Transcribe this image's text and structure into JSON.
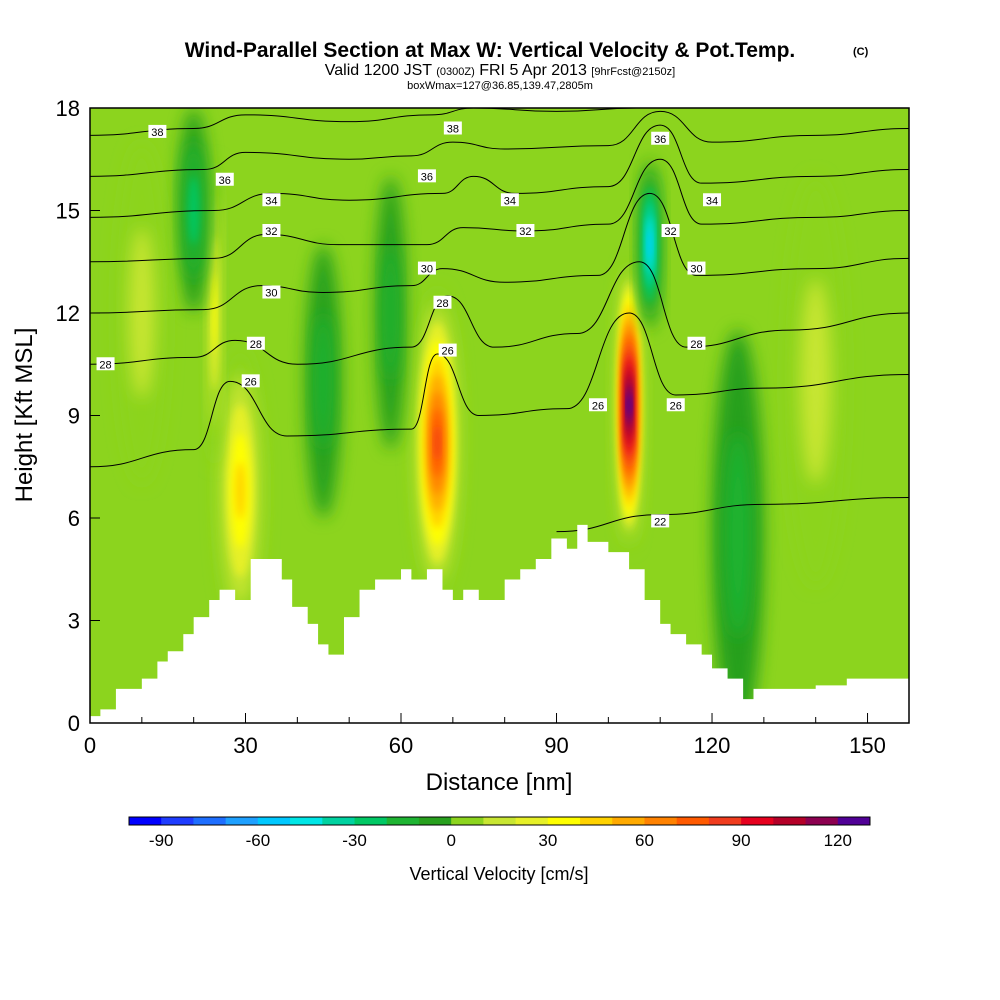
{
  "header": {
    "title_main": "Wind-Parallel Section at Max W: Vertical Velocity & Pot.Temp.",
    "title_mark": "(C)",
    "valid_a": "Valid 1200 JST",
    "valid_b": "(0300Z)",
    "valid_c": "FRI 5 Apr 2013",
    "valid_d": "[9hrFcst@2150z]",
    "box_info": "boxWmax=127@36.85,139.47,2805m"
  },
  "chart_data": {
    "type": "heatmap",
    "xlabel": "Distance [nm]",
    "ylabel": "Height [Kft MSL]",
    "xlim": [
      0,
      158
    ],
    "ylim": [
      0,
      18
    ],
    "x_ticks": [
      0,
      30,
      60,
      90,
      120,
      150
    ],
    "x_tick_labels": [
      "0",
      "30",
      "60",
      "90",
      "120",
      "150"
    ],
    "x_minor_ticks": [
      10,
      20,
      40,
      50,
      70,
      80,
      100,
      110,
      130,
      140
    ],
    "y_ticks": [
      0,
      3,
      6,
      9,
      12,
      15,
      18
    ],
    "y_tick_labels": [
      "0",
      "3",
      "6",
      "9",
      "12",
      "15",
      "18"
    ],
    "grid": false,
    "background_color": "#8cd41e",
    "colorbar": {
      "label": "Vertical Velocity [cm/s]",
      "placement": "bottom",
      "min": -100,
      "max": 130,
      "step": 10,
      "colors": [
        "#0000ff",
        "#1e3cff",
        "#1e6eff",
        "#1ea0ff",
        "#00c8ff",
        "#00e6e6",
        "#00d2a0",
        "#00c864",
        "#1eb432",
        "#28a01e",
        "#8cd41e",
        "#c8e632",
        "#e6f028",
        "#ffff00",
        "#ffd200",
        "#ffaa00",
        "#ff8200",
        "#ff5a00",
        "#f03c1e",
        "#e6001e",
        "#b40028",
        "#8c0050",
        "#500096"
      ],
      "tick_values": [
        -90,
        -60,
        -30,
        0,
        30,
        60,
        90,
        120
      ],
      "tick_labels": [
        "-90",
        "-60",
        "-30",
        "0",
        "30",
        "60",
        "90",
        "120"
      ]
    },
    "terrain": {
      "x": [
        0,
        2,
        2,
        5,
        5,
        10,
        10,
        13,
        13,
        15,
        15,
        18,
        18,
        20,
        20,
        23,
        23,
        25,
        25,
        28,
        28,
        31,
        31,
        37,
        37,
        39,
        39,
        42,
        42,
        44,
        44,
        46,
        46,
        49,
        49,
        52,
        52,
        55,
        55,
        60,
        60,
        62,
        62,
        65,
        65,
        68,
        68,
        70,
        70,
        72,
        72,
        75,
        75,
        80,
        80,
        83,
        83,
        86,
        86,
        89,
        89,
        92,
        92,
        94,
        94,
        96,
        96,
        100,
        100,
        104,
        104,
        107,
        107,
        110,
        110,
        112,
        112,
        115,
        115,
        118,
        118,
        120,
        120,
        123,
        123,
        126,
        126,
        128,
        128,
        132,
        132,
        140,
        140,
        146,
        146,
        158
      ],
      "y": [
        0.2,
        0.2,
        0.4,
        0.4,
        1,
        1,
        1.3,
        1.3,
        1.8,
        1.8,
        2.1,
        2.1,
        2.6,
        2.6,
        3.1,
        3.1,
        3.6,
        3.6,
        3.9,
        3.9,
        3.6,
        3.6,
        4.8,
        4.8,
        4.2,
        4.2,
        3.4,
        3.4,
        2.9,
        2.9,
        2.3,
        2.3,
        2,
        2,
        3.1,
        3.1,
        3.9,
        3.9,
        4.2,
        4.2,
        4.5,
        4.5,
        4.2,
        4.2,
        4.5,
        4.5,
        3.9,
        3.9,
        3.6,
        3.6,
        3.9,
        3.9,
        3.6,
        3.6,
        4.2,
        4.2,
        4.5,
        4.5,
        4.8,
        4.8,
        5.4,
        5.4,
        5.1,
        5.1,
        5.8,
        5.8,
        5.3,
        5.3,
        5,
        5,
        4.5,
        4.5,
        3.6,
        3.6,
        2.9,
        2.9,
        2.6,
        2.6,
        2.3,
        2.3,
        2,
        2,
        1.6,
        1.6,
        1.3,
        1.3,
        0.7,
        0.7,
        1,
        1,
        1,
        1,
        1.1,
        1.1,
        1.3,
        1.3
      ]
    },
    "vertical_velocity_features": [
      {
        "x": 29,
        "y": 6.8,
        "rx": 4.5,
        "ry": 4.2,
        "w": 40
      },
      {
        "x": 67,
        "y": 8.2,
        "rx": 4.5,
        "ry": 4.5,
        "w": 75
      },
      {
        "x": 104,
        "y": 9.3,
        "rx": 2.5,
        "ry": 4.2,
        "w": 127
      },
      {
        "x": 24,
        "y": 12,
        "rx": 1.5,
        "ry": 4.5,
        "w": 25
      },
      {
        "x": 20,
        "y": 15,
        "rx": 3.0,
        "ry": 3.0,
        "w": -15
      },
      {
        "x": 108,
        "y": 14,
        "rx": 2.0,
        "ry": 2.5,
        "w": -45
      },
      {
        "x": 45,
        "y": 10,
        "rx": 3.5,
        "ry": 4.0,
        "w": -12
      },
      {
        "x": 58,
        "y": 12,
        "rx": 3.0,
        "ry": 4.0,
        "w": -12
      },
      {
        "x": 125,
        "y": 5.5,
        "rx": 5.0,
        "ry": 6.0,
        "w": -8
      },
      {
        "x": 140,
        "y": 10,
        "rx": 6.0,
        "ry": 6.0,
        "w": 10
      },
      {
        "x": 10,
        "y": 12,
        "rx": 5.0,
        "ry": 5.0,
        "w": 8
      }
    ],
    "theta_isentropes": [
      {
        "label": "22",
        "x": [
          90,
          110,
          130,
          158
        ],
        "y": [
          5.6,
          6.1,
          6.4,
          6.6
        ]
      },
      {
        "label": "26",
        "x": [
          0,
          20,
          27,
          38,
          62,
          67,
          75,
          92,
          104,
          113,
          130,
          158
        ],
        "y": [
          7.5,
          8.0,
          10.0,
          8.4,
          8.6,
          10.8,
          9.0,
          9.2,
          12.0,
          9.6,
          9.8,
          10.2
        ]
      },
      {
        "label": "28",
        "x": [
          0,
          20,
          28,
          40,
          62,
          69,
          78,
          94,
          106,
          115,
          135,
          158
        ],
        "y": [
          10.5,
          10.7,
          11.2,
          10.5,
          11.0,
          12.5,
          11.0,
          11.4,
          13.5,
          11.0,
          11.5,
          12.0
        ]
      },
      {
        "label": "30",
        "x": [
          0,
          22,
          33,
          45,
          62,
          68,
          80,
          98,
          108,
          117,
          140,
          158
        ],
        "y": [
          12.0,
          12.1,
          12.8,
          12.6,
          12.8,
          13.3,
          12.9,
          13.1,
          15.5,
          13.1,
          13.3,
          13.6
        ]
      },
      {
        "label": "32",
        "x": [
          0,
          24,
          34,
          48,
          65,
          72,
          84,
          100,
          110,
          118,
          140,
          158
        ],
        "y": [
          13.5,
          13.6,
          14.3,
          14.0,
          14.0,
          14.5,
          14.4,
          14.6,
          16.5,
          14.6,
          14.8,
          15.0
        ]
      },
      {
        "label": "34",
        "x": [
          0,
          24,
          35,
          50,
          68,
          74,
          82,
          100,
          110,
          118,
          140,
          158
        ],
        "y": [
          14.8,
          15.0,
          15.5,
          15.3,
          15.5,
          16.0,
          15.5,
          15.7,
          17.5,
          15.8,
          16.0,
          16.2
        ]
      },
      {
        "label": "36",
        "x": [
          0,
          22,
          30,
          50,
          62,
          70,
          80,
          100,
          110,
          120,
          140,
          158
        ],
        "y": [
          16.0,
          16.2,
          16.7,
          16.5,
          16.6,
          17.0,
          16.8,
          16.9,
          17.9,
          17.0,
          17.2,
          17.4
        ]
      },
      {
        "label": "38",
        "x": [
          0,
          20,
          30,
          50,
          66,
          74,
          90,
          106,
          120,
          140,
          158
        ],
        "y": [
          17.2,
          17.4,
          17.8,
          17.6,
          17.8,
          18.0,
          17.9,
          18.0,
          18.0,
          18.0,
          18.0
        ]
      }
    ],
    "theta_labels": [
      {
        "text": "38",
        "x": 13,
        "y": 17.3
      },
      {
        "text": "38",
        "x": 70,
        "y": 17.4
      },
      {
        "text": "36",
        "x": 26,
        "y": 15.9
      },
      {
        "text": "36",
        "x": 65,
        "y": 16.0
      },
      {
        "text": "36",
        "x": 110,
        "y": 17.1
      },
      {
        "text": "34",
        "x": 35,
        "y": 15.3
      },
      {
        "text": "34",
        "x": 81,
        "y": 15.3
      },
      {
        "text": "34",
        "x": 120,
        "y": 15.3
      },
      {
        "text": "32",
        "x": 35,
        "y": 14.4
      },
      {
        "text": "32",
        "x": 84,
        "y": 14.4
      },
      {
        "text": "32",
        "x": 112,
        "y": 14.4
      },
      {
        "text": "30",
        "x": 35,
        "y": 12.6
      },
      {
        "text": "30",
        "x": 65,
        "y": 13.3
      },
      {
        "text": "30",
        "x": 117,
        "y": 13.3
      },
      {
        "text": "28",
        "x": 3,
        "y": 10.5
      },
      {
        "text": "28",
        "x": 32,
        "y": 11.1
      },
      {
        "text": "28",
        "x": 68,
        "y": 12.3
      },
      {
        "text": "28",
        "x": 117,
        "y": 11.1
      },
      {
        "text": "26",
        "x": 31,
        "y": 10.0
      },
      {
        "text": "26",
        "x": 69,
        "y": 10.9
      },
      {
        "text": "26",
        "x": 98,
        "y": 9.3
      },
      {
        "text": "26",
        "x": 113,
        "y": 9.3
      },
      {
        "text": "22",
        "x": 110,
        "y": 5.9
      }
    ]
  }
}
